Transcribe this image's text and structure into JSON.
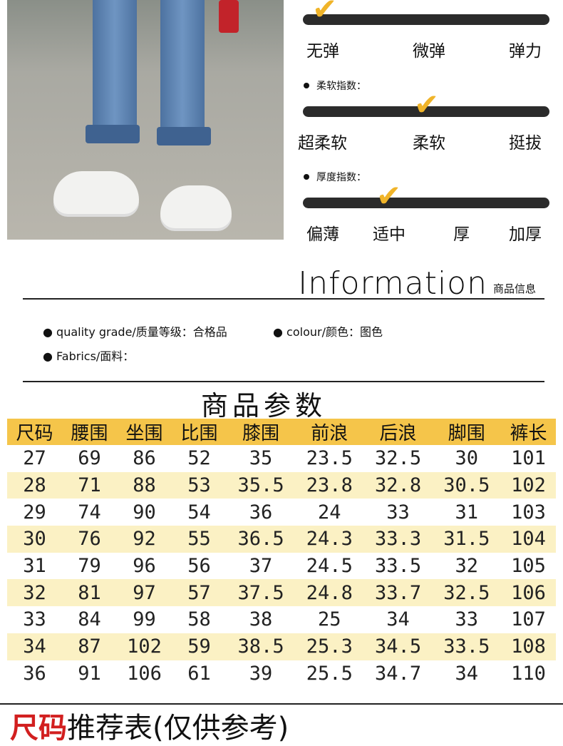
{
  "sliders": [
    {
      "label": "",
      "ticks": [
        "无弹",
        "微弹",
        "弹力"
      ],
      "selected": "无弹"
    },
    {
      "label": "柔软指数：",
      "ticks": [
        "超柔软",
        "柔软",
        "挺拔"
      ],
      "selected": "柔软"
    },
    {
      "label": "厚度指数：",
      "ticks": [
        "偏薄",
        "适中",
        "厚",
        "加厚"
      ],
      "selected": "适中"
    }
  ],
  "check_icon": "✔",
  "accent_color": "#f0b429",
  "information": {
    "title_en": "Information",
    "title_cn": "商品信息",
    "quality": "● quality grade/质量等级：合格品",
    "colour": "● colour/颜色：图色",
    "fabrics": "● Fabrics/面料："
  },
  "params_title": "商品参数",
  "table": {
    "headers": [
      "尺码",
      "腰围",
      "坐围",
      "比围",
      "膝围",
      "前浪",
      "后浪",
      "脚围",
      "裤长"
    ],
    "rows": [
      [
        "27",
        "69",
        "86",
        "52",
        "35",
        "23.5",
        "32.5",
        "30",
        "101"
      ],
      [
        "28",
        "71",
        "88",
        "53",
        "35.5",
        "23.8",
        "32.8",
        "30.5",
        "102"
      ],
      [
        "29",
        "74",
        "90",
        "54",
        "36",
        "24",
        "33",
        "31",
        "103"
      ],
      [
        "30",
        "76",
        "92",
        "55",
        "36.5",
        "24.3",
        "33.3",
        "31.5",
        "104"
      ],
      [
        "31",
        "79",
        "96",
        "56",
        "37",
        "24.5",
        "33.5",
        "32",
        "105"
      ],
      [
        "32",
        "81",
        "97",
        "57",
        "37.5",
        "24.8",
        "33.7",
        "32.5",
        "106"
      ],
      [
        "33",
        "84",
        "99",
        "58",
        "38",
        "25",
        "34",
        "33",
        "107"
      ],
      [
        "34",
        "87",
        "102",
        "59",
        "38.5",
        "25.3",
        "34.5",
        "33.5",
        "108"
      ],
      [
        "36",
        "91",
        "106",
        "61",
        "39",
        "25.5",
        "34.7",
        "34",
        "110"
      ]
    ]
  },
  "recommend": {
    "red": "尺码",
    "rest": "推荐表(仅供参考)"
  }
}
